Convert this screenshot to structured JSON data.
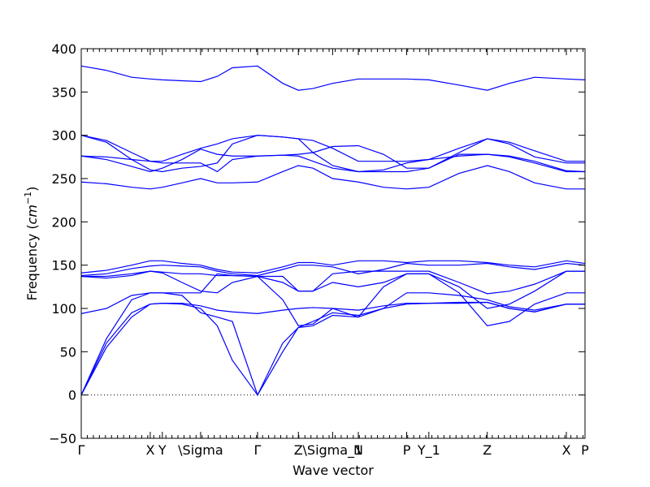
{
  "chart_data": {
    "type": "line",
    "xlabel": "Wave vector",
    "ylabel": "Frequency ($cm^{-1}$)",
    "ylabel_parts": {
      "main": "Frequency (",
      "unit_base": "cm",
      "unit_exp": "−1",
      "close": ")"
    },
    "xlim": [
      0,
      100
    ],
    "ylim": [
      -50,
      400
    ],
    "y_ticks": [
      -50,
      0,
      50,
      100,
      150,
      200,
      250,
      300,
      350,
      400
    ],
    "y_tick_labels": [
      "−50",
      "0",
      "50",
      "100",
      "150",
      "200",
      "250",
      "300",
      "350",
      "400"
    ],
    "x_ticks": [
      {
        "x": 0,
        "label": "Γ"
      },
      {
        "x": 13.7,
        "label": "X"
      },
      {
        "x": 16.1,
        "label": "Y"
      },
      {
        "x": 23.7,
        "label": "\\Sigma"
      },
      {
        "x": 35.0,
        "label": "Γ"
      },
      {
        "x": 43.1,
        "label": "Z"
      },
      {
        "x": 49.9,
        "label": "\\Sigma_1"
      },
      {
        "x": 55.0,
        "label": "N"
      },
      {
        "x": 64.6,
        "label": "P"
      },
      {
        "x": 69.0,
        "label": "Y_1"
      },
      {
        "x": 80.6,
        "label": "Z"
      },
      {
        "x": 96.3,
        "label": "X"
      },
      {
        "x": 100,
        "label": "P"
      }
    ],
    "zero_line": true,
    "line_color": "#0000ff",
    "series": [
      {
        "x": [
          0,
          5,
          10,
          13.7,
          16.1,
          20,
          23.7,
          27,
          30,
          35,
          40,
          43.1,
          46,
          49.9,
          55,
          60,
          64.6,
          69,
          75,
          80.6,
          85,
          90,
          96.3,
          100
        ],
        "y": [
          380,
          375,
          367,
          365,
          364,
          363,
          362,
          368,
          378,
          380,
          360,
          352,
          354,
          360,
          365,
          365,
          365,
          364,
          358,
          352,
          360,
          367,
          365,
          364
        ]
      },
      {
        "x": [
          0,
          5,
          10,
          13.7,
          16.1,
          20,
          23.7,
          27,
          30,
          35,
          40,
          43.1,
          46,
          49.9,
          55,
          60,
          64.6,
          69,
          75,
          80.6,
          85,
          90,
          96.3,
          100
        ],
        "y": [
          300,
          294,
          280,
          270,
          270,
          278,
          285,
          290,
          296,
          300,
          298,
          296,
          294,
          285,
          270,
          270,
          270,
          272,
          285,
          296,
          292,
          282,
          270,
          270
        ]
      },
      {
        "x": [
          0,
          5,
          10,
          13.7,
          16.1,
          20,
          23.7,
          27,
          30,
          35,
          40,
          43.1,
          46,
          49.9,
          55,
          60,
          64.6,
          69,
          75,
          80.6,
          85,
          90,
          96.3,
          100
        ],
        "y": [
          276,
          272,
          264,
          258,
          262,
          272,
          284,
          278,
          276,
          276,
          277,
          278,
          280,
          287,
          288,
          278,
          262,
          262,
          278,
          278,
          276,
          270,
          259,
          258
        ]
      },
      {
        "x": [
          0,
          5,
          10,
          13.7,
          16.1,
          20,
          23.7,
          27,
          30,
          35,
          40,
          43.1,
          46,
          49.9,
          55,
          60,
          64.6,
          69,
          75,
          80.6,
          85,
          90,
          96.3,
          100
        ],
        "y": [
          300,
          292,
          272,
          260,
          258,
          262,
          264,
          268,
          290,
          300,
          298,
          296,
          280,
          265,
          258,
          258,
          258,
          262,
          280,
          296,
          290,
          275,
          268,
          268
        ]
      },
      {
        "x": [
          0,
          5,
          10,
          13.7,
          16.1,
          20,
          23.7,
          27,
          30,
          35,
          40,
          43.1,
          46,
          49.9,
          55,
          60,
          64.6,
          69,
          75,
          80.6,
          85,
          90,
          96.3,
          100
        ],
        "y": [
          276,
          275,
          272,
          270,
          268,
          268,
          268,
          258,
          272,
          276,
          277,
          276,
          270,
          262,
          258,
          260,
          268,
          272,
          276,
          278,
          275,
          268,
          258,
          258
        ]
      },
      {
        "x": [
          0,
          5,
          10,
          13.7,
          16.1,
          20,
          23.7,
          27,
          30,
          35,
          40,
          43.1,
          46,
          49.9,
          55,
          60,
          64.6,
          69,
          75,
          80.6,
          85,
          90,
          96.3,
          100
        ],
        "y": [
          246,
          244,
          240,
          238,
          240,
          245,
          250,
          245,
          245,
          246,
          258,
          265,
          262,
          250,
          246,
          240,
          238,
          240,
          256,
          265,
          258,
          245,
          238,
          238
        ]
      },
      {
        "x": [
          0,
          5,
          10,
          13.7,
          16.1,
          20,
          23.7,
          27,
          30,
          35,
          40,
          43.1,
          46,
          49.9,
          55,
          60,
          64.6,
          69,
          75,
          80.6,
          85,
          90,
          96.3,
          100
        ],
        "y": [
          141,
          144,
          150,
          155,
          155,
          152,
          150,
          145,
          142,
          141,
          148,
          153,
          153,
          150,
          155,
          155,
          153,
          155,
          155,
          153,
          150,
          148,
          155,
          152
        ]
      },
      {
        "x": [
          0,
          5,
          10,
          13.7,
          16.1,
          20,
          23.7,
          27,
          30,
          35,
          40,
          43.1,
          46,
          49.9,
          55,
          60,
          64.6,
          69,
          75,
          80.6,
          85,
          90,
          96.3,
          100
        ],
        "y": [
          138,
          140,
          146,
          149,
          150,
          149,
          148,
          143,
          140,
          138,
          145,
          150,
          150,
          148,
          140,
          145,
          152,
          150,
          150,
          152,
          148,
          145,
          152,
          150
        ]
      },
      {
        "x": [
          0,
          5,
          10,
          13.7,
          16.1,
          20,
          23.7,
          27,
          30,
          35,
          40,
          43.1,
          46,
          49.9,
          55,
          60,
          64.6,
          69,
          75,
          80.6,
          85,
          90,
          96.3,
          100
        ],
        "y": [
          137,
          137,
          140,
          143,
          142,
          140,
          140,
          138,
          138,
          137,
          137,
          120,
          120,
          140,
          143,
          143,
          143,
          143,
          130,
          117,
          120,
          128,
          143,
          143
        ]
      },
      {
        "x": [
          0,
          5,
          10,
          13.7,
          16.1,
          20,
          23.7,
          27,
          30,
          35,
          40,
          43.1,
          46,
          49.9,
          55,
          60,
          64.6,
          69,
          75,
          80.6,
          85,
          90,
          96.3,
          100
        ],
        "y": [
          137,
          135,
          138,
          143,
          141,
          130,
          120,
          118,
          130,
          137,
          130,
          120,
          120,
          130,
          125,
          130,
          140,
          140,
          125,
          100,
          105,
          120,
          143,
          143
        ]
      },
      {
        "x": [
          0,
          5,
          10,
          13.7,
          16.1,
          20,
          23.7,
          27,
          30,
          35,
          40,
          43.1,
          46,
          49.9,
          55,
          60,
          64.6,
          69,
          75,
          80.6,
          85,
          90,
          96.3,
          100
        ],
        "y": [
          0,
          65,
          110,
          118,
          118,
          118,
          118,
          140,
          138,
          137,
          110,
          80,
          82,
          100,
          90,
          125,
          140,
          140,
          118,
          80,
          85,
          105,
          118,
          118
        ]
      },
      {
        "x": [
          0,
          5,
          10,
          13.7,
          16.1,
          20,
          23.7,
          27,
          30,
          35,
          40,
          43.1,
          46,
          49.9,
          55,
          60,
          64.6,
          69,
          75,
          80.6,
          85,
          90,
          96.3,
          100
        ],
        "y": [
          94,
          100,
          115,
          118,
          118,
          115,
          95,
          90,
          85,
          0,
          60,
          78,
          85,
          95,
          92,
          100,
          118,
          118,
          115,
          110,
          102,
          98,
          105,
          105
        ]
      },
      {
        "x": [
          0,
          5,
          10,
          13.7,
          16.1,
          20,
          23.7,
          27,
          30,
          35,
          40,
          43.1,
          46,
          49.9,
          55,
          60,
          64.6,
          69,
          75,
          80.6,
          85,
          90,
          96.3,
          100
        ],
        "y": [
          0,
          60,
          95,
          105,
          106,
          106,
          103,
          98,
          96,
          94,
          98,
          100,
          101,
          100,
          98,
          103,
          106,
          106,
          107,
          107,
          100,
          96,
          105,
          105
        ]
      },
      {
        "x": [
          0,
          5,
          10,
          13.7,
          16.1,
          20,
          23.7,
          27,
          30,
          35,
          40,
          43.1,
          46,
          49.9,
          55,
          60,
          64.6,
          69,
          75,
          80.6,
          85,
          90,
          96.3,
          100
        ],
        "y": [
          0,
          55,
          90,
          105,
          106,
          105,
          100,
          80,
          40,
          0,
          50,
          78,
          80,
          92,
          90,
          100,
          105,
          106,
          106,
          107,
          100,
          96,
          105,
          105
        ]
      }
    ]
  }
}
